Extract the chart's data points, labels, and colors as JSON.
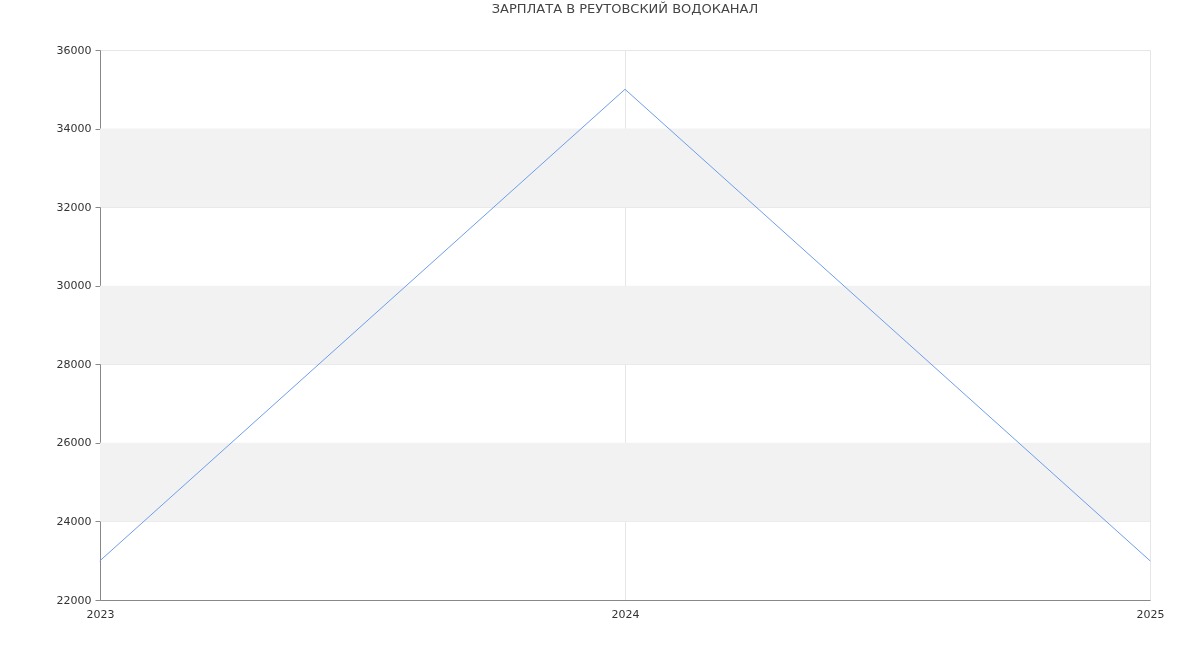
{
  "chart_data": {
    "type": "line",
    "title": "ЗАРПЛАТА В  РЕУТОВСКИЙ ВОДОКАНАЛ",
    "x": [
      2023,
      2024,
      2025
    ],
    "values": [
      23000,
      35000,
      23000
    ],
    "color": "#6d9eeb",
    "xlim": [
      2023,
      2025
    ],
    "xticks": [
      2023,
      2024,
      2025
    ],
    "ylim": [
      22000,
      36000
    ],
    "yticks": [
      22000,
      24000,
      26000,
      28000,
      30000,
      32000,
      34000,
      36000
    ],
    "grid": true,
    "bands": [
      {
        "axis": "y",
        "from": 24000,
        "to": 26000,
        "color": "#f2f2f2"
      },
      {
        "axis": "y",
        "from": 28000,
        "to": 30000,
        "color": "#f2f2f2"
      },
      {
        "axis": "y",
        "from": 32000,
        "to": 34000,
        "color": "#f2f2f2"
      }
    ]
  }
}
